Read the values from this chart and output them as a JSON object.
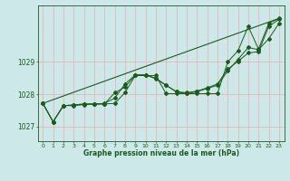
{
  "title": "Graphe pression niveau de la mer (hPa)",
  "bg_color": "#cce8e8",
  "grid_color": "#ff9999",
  "line_color": "#1a5c1a",
  "xlim": [
    -0.5,
    23.5
  ],
  "ylim": [
    1026.55,
    1030.75
  ],
  "yticks": [
    1027,
    1028,
    1029
  ],
  "xticks": [
    0,
    1,
    2,
    3,
    4,
    5,
    6,
    7,
    8,
    9,
    10,
    11,
    12,
    13,
    14,
    15,
    16,
    17,
    18,
    19,
    20,
    21,
    22,
    23
  ],
  "series1": [
    1027.72,
    1027.15,
    1027.65,
    1027.65,
    1027.68,
    1027.7,
    1027.7,
    1027.72,
    1028.05,
    1028.58,
    1028.58,
    1028.58,
    1028.02,
    1028.02,
    1028.02,
    1028.02,
    1028.02,
    1028.02,
    1029.0,
    1029.35,
    1030.1,
    1029.4,
    1030.2,
    1030.35
  ],
  "series2": [
    1027.72,
    1027.15,
    1027.65,
    1027.67,
    1027.7,
    1027.7,
    1027.7,
    1028.05,
    1028.22,
    1028.6,
    1028.6,
    1028.5,
    1028.28,
    1028.08,
    1028.02,
    1028.08,
    1028.18,
    1028.28,
    1028.72,
    1029.08,
    1029.45,
    1029.38,
    1029.72,
    1030.2
  ],
  "series3": [
    1027.72,
    1027.15,
    1027.65,
    1027.67,
    1027.7,
    1027.7,
    1027.72,
    1027.88,
    1028.32,
    1028.6,
    1028.6,
    1028.48,
    1028.28,
    1028.08,
    1028.05,
    1028.1,
    1028.2,
    1028.32,
    1028.78,
    1029.02,
    1029.28,
    1029.32,
    1030.1,
    1030.32
  ],
  "series4_x": [
    0,
    23
  ],
  "series4_y": [
    1027.72,
    1030.35
  ]
}
